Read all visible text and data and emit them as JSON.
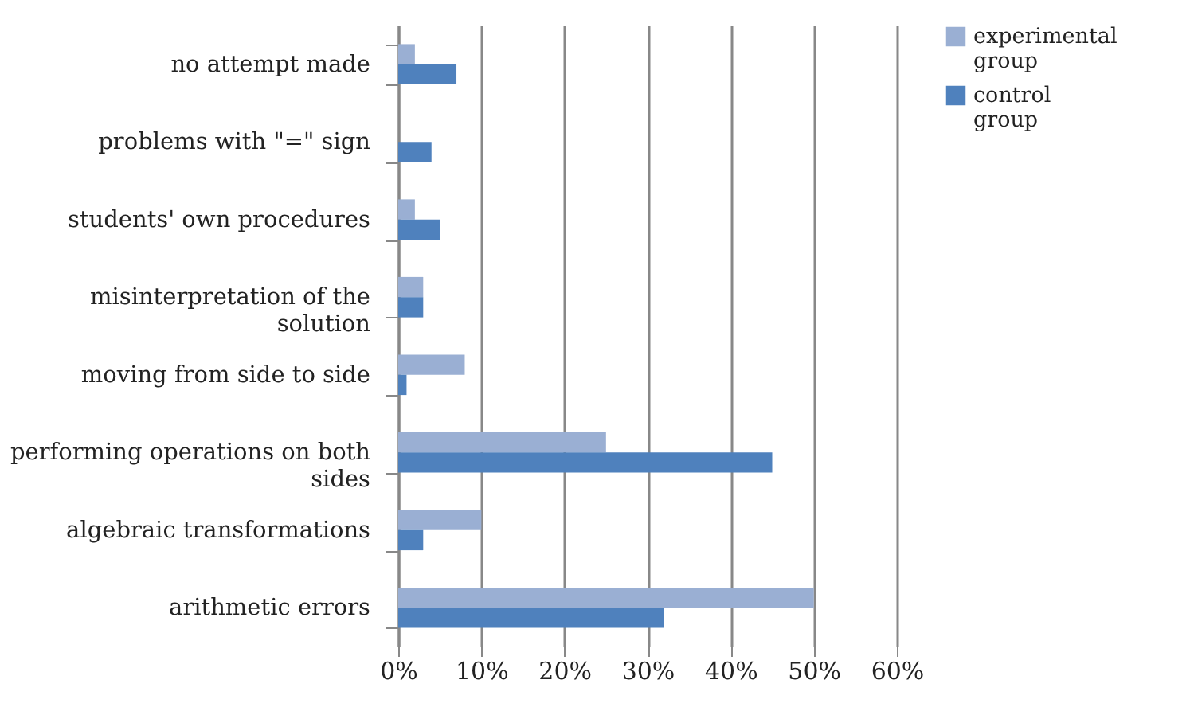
{
  "chart_data": {
    "type": "bar",
    "orientation": "horizontal",
    "categories": [
      "no attempt made",
      "problems with \"=\" sign",
      "students' own procedures",
      "misinterpretation of the solution",
      "moving from side to side",
      "performing operations on both sides",
      "algebraic transformations",
      "arithmetic errors"
    ],
    "series": [
      {
        "name": "experimental group",
        "color": "#9aafd3",
        "values": [
          2,
          0,
          2,
          3,
          8,
          25,
          10,
          50
        ]
      },
      {
        "name": "control group",
        "color": "#4f81bd",
        "values": [
          7,
          4,
          5,
          3,
          1,
          45,
          3,
          32
        ]
      }
    ],
    "xlim": [
      0,
      60
    ],
    "xticks": [
      {
        "value": 0,
        "label": "0%"
      },
      {
        "value": 10,
        "label": "10%"
      },
      {
        "value": 20,
        "label": "20%"
      },
      {
        "value": 30,
        "label": "30%"
      },
      {
        "value": 40,
        "label": "40%"
      },
      {
        "value": 50,
        "label": "50%"
      },
      {
        "value": 60,
        "label": "60%"
      }
    ],
    "grid": "x",
    "legend": "right"
  }
}
